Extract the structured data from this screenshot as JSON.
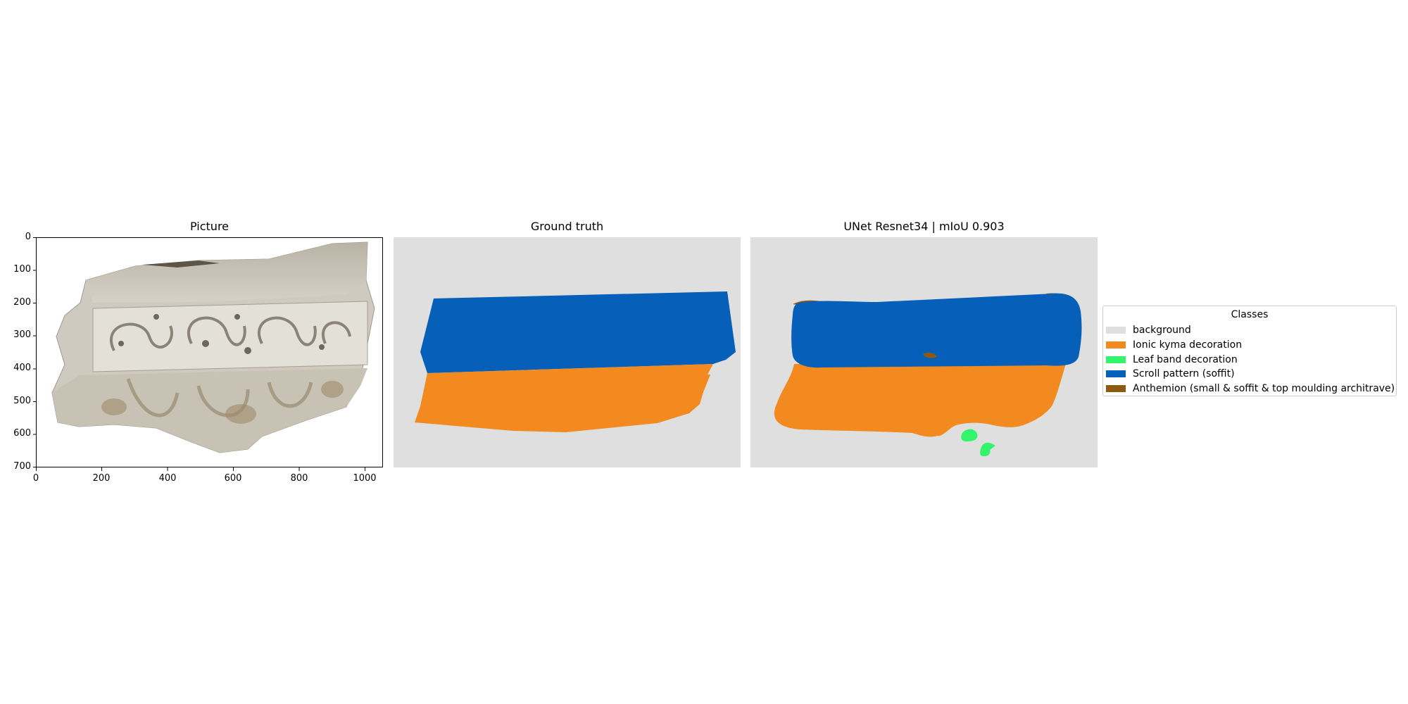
{
  "panels": {
    "picture": {
      "title": "Picture"
    },
    "ground_truth": {
      "title": "Ground truth"
    },
    "prediction": {
      "title": "UNet Resnet34 | mIoU 0.903"
    }
  },
  "axes": {
    "y_ticks": [
      "0",
      "100",
      "200",
      "300",
      "400",
      "500",
      "600",
      "700"
    ],
    "x_ticks": [
      "0",
      "200",
      "400",
      "600",
      "800",
      "1000"
    ]
  },
  "legend": {
    "title": "Classes",
    "items": [
      {
        "label": "background",
        "color": "#dfdfdf"
      },
      {
        "label": "Ionic kyma decoration",
        "color": "#f28a1f"
      },
      {
        "label": "Leaf band decoration",
        "color": "#33f56b"
      },
      {
        "label": "Scroll pattern (soffit)",
        "color": "#065fb8"
      },
      {
        "label": "Anthemion (small & soffit & top moulding architrave)",
        "color": "#8c5a10"
      }
    ]
  }
}
